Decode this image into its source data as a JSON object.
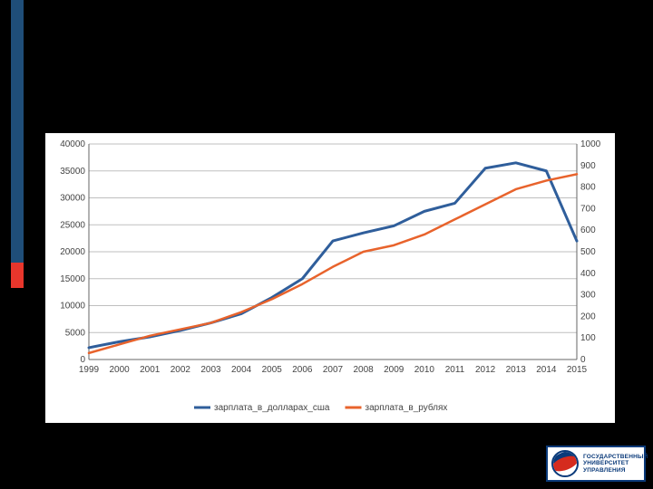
{
  "slide": {
    "background_color": "#000000",
    "accent_blue_color": "#1f4e79",
    "accent_red_color": "#e8362c"
  },
  "logo": {
    "line1": "ГОСУДАРСТВЕННЫЙ",
    "line2": "УНИВЕРСИТЕТ",
    "line3": "УПРАВЛЕНИЯ",
    "border_color": "#0a3a7a",
    "red": "#d52b1e",
    "blue": "#0a3a7a"
  },
  "chart": {
    "type": "line-dual-axis",
    "background_color": "#ffffff",
    "plot_background": "#ffffff",
    "grid_color": "#bfbfbf",
    "axis_color": "#666666",
    "tick_font_size": 10,
    "legend_font_size": 10,
    "x": {
      "categories": [
        "1999",
        "2000",
        "2001",
        "2002",
        "2003",
        "2004",
        "2005",
        "2006",
        "2007",
        "2008",
        "2009",
        "2010",
        "2011",
        "2012",
        "2013",
        "2014",
        "2015"
      ]
    },
    "y_left": {
      "min": 0,
      "max": 40000,
      "step": 5000,
      "ticks": [
        "0",
        "5000",
        "10000",
        "15000",
        "20000",
        "25000",
        "30000",
        "35000",
        "40000"
      ]
    },
    "y_right": {
      "min": 0,
      "max": 1000,
      "step": 100,
      "ticks": [
        "0",
        "100",
        "200",
        "300",
        "400",
        "500",
        "600",
        "700",
        "800",
        "900",
        "1000"
      ]
    },
    "series": [
      {
        "name": "зарплата_в_долларах_сша",
        "axis": "left",
        "color": "#2f5e9b",
        "line_width": 3,
        "data": [
          2200,
          3300,
          4200,
          5400,
          6800,
          8500,
          11500,
          15000,
          22000,
          23500,
          24800,
          27500,
          29000,
          35500,
          36500,
          35000,
          22000
        ]
      },
      {
        "name": "зарплата_в_рублях",
        "axis": "right",
        "color": "#e8632c",
        "line_width": 2.5,
        "data": [
          30,
          70,
          110,
          140,
          170,
          220,
          280,
          350,
          430,
          500,
          530,
          580,
          650,
          720,
          790,
          830,
          860
        ]
      }
    ],
    "legend": {
      "position": "bottom",
      "items": [
        {
          "label": "зарплата_в_долларах_сша",
          "color": "#2f5e9b"
        },
        {
          "label": "зарплата_в_рублях",
          "color": "#e8632c"
        }
      ]
    }
  }
}
